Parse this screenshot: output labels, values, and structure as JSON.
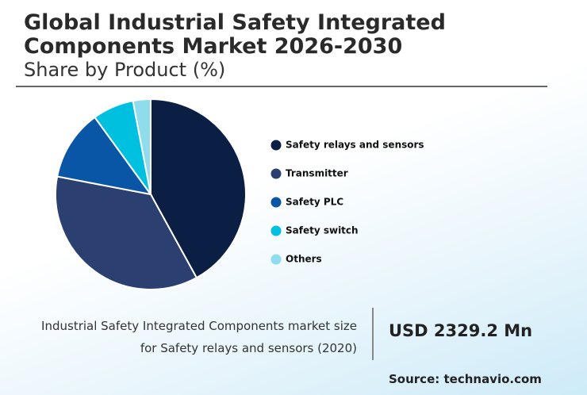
{
  "chart_data": {
    "type": "pie",
    "title": "Global Industrial Safety Integrated Components Market 2026-2030",
    "subtitle": "Share by Product (%)",
    "categories": [
      "Safety relays and sensors",
      "Transmitter",
      "Safety PLC",
      "Safety switch",
      "Others"
    ],
    "values": [
      42,
      36,
      12,
      7,
      3
    ],
    "colors": [
      "#0b1f45",
      "#2b3f70",
      "#0a56a6",
      "#00c0e0",
      "#8fdcec"
    ],
    "annotation": {
      "description": "Industrial Safety Integrated Components market size for Safety relays and sensors (2020)",
      "value": "USD 2329.2 Mn"
    },
    "source": "Source: technavio.com"
  }
}
